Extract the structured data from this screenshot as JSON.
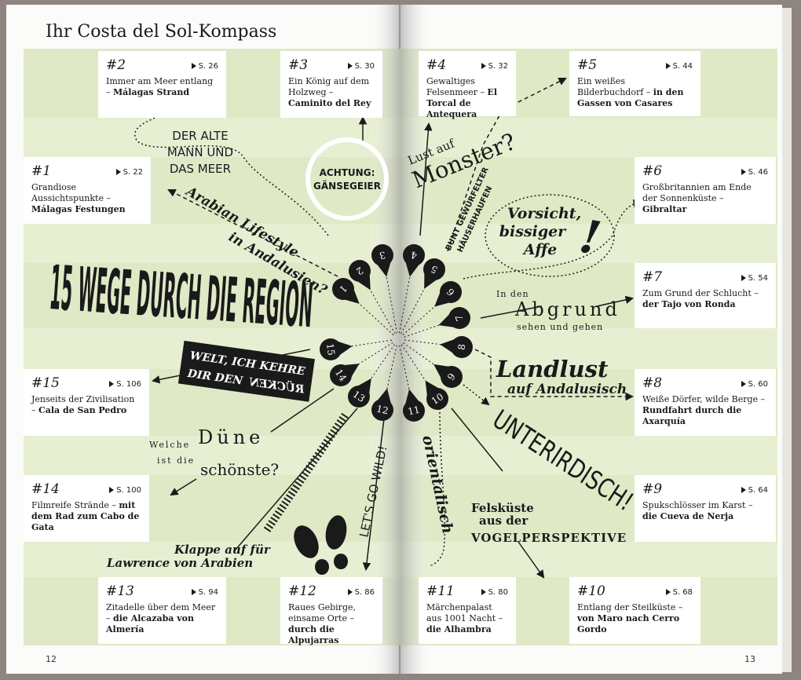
{
  "title": "Ihr Costa del Sol-Kompass",
  "headline": "15 WEGE DURCH DIE REGION",
  "boxes": [
    {
      "number": "#1",
      "page": "S. 22",
      "text": "Grandiose Aussichtspunkte –",
      "bold": "Málagas Festungen"
    },
    {
      "number": "#2",
      "page": "S. 26",
      "text": "Immer am Meer entlang –",
      "bold": "Málagas Strand"
    },
    {
      "number": "#3",
      "page": "S. 30",
      "text": "Ein König auf dem Holzweg –",
      "bold": "Caminito del Rey"
    },
    {
      "number": "#4",
      "page": "S. 32",
      "text": "Gewaltiges Felsenmeer –",
      "bold": "El Torcal de Antequera"
    },
    {
      "number": "#5",
      "page": "S. 44",
      "text": "Ein weißes Bilderbuchdorf –",
      "bold": "in den Gassen von Casares"
    },
    {
      "number": "#6",
      "page": "S. 46",
      "text": "Großbritannien am Ende der Sonnenküste –",
      "bold": "Gibraltar"
    },
    {
      "number": "#7",
      "page": "S. 54",
      "text": "Zum Grund der Schlucht –",
      "bold": "der Tajo von Ronda"
    },
    {
      "number": "#8",
      "page": "S. 60",
      "text": "Weiße Dörfer, wilde Berge –",
      "bold": "Rundfahrt durch die Axarquía"
    },
    {
      "number": "#9",
      "page": "S. 64",
      "text": "Spukschlösser im Karst –",
      "bold": "die Cueva de Nerja"
    },
    {
      "number": "#10",
      "page": "S. 68",
      "text": "Entlang der Steilküste –",
      "bold": "von Maro nach Cerro Gordo"
    },
    {
      "number": "#11",
      "page": "S. 80",
      "text": "Märchenpalast aus 1001 Nacht –",
      "bold": "die Alhambra"
    },
    {
      "number": "#12",
      "page": "S. 86",
      "text": "Raues Gebirge, einsame Orte –",
      "bold": "durch die Alpujarras"
    },
    {
      "number": "#13",
      "page": "S. 94",
      "text": "Zitadelle über dem Meer –",
      "bold": "die Alcazaba von Almería"
    },
    {
      "number": "#14",
      "page": "S. 100",
      "text": "Filmreife Strände –",
      "bold": "mit dem Rad zum Cabo de Gata"
    },
    {
      "number": "#15",
      "page": "S. 106",
      "text": "Jenseits der Zivilisation –",
      "bold": "Cala de San Pedro"
    }
  ],
  "pins": [
    "1",
    "2",
    "3",
    "4",
    "5",
    "6",
    "7",
    "8",
    "9",
    "10",
    "11",
    "12",
    "13",
    "14",
    "15"
  ],
  "annotations": {
    "old_man": [
      "DER ALTE",
      "MANN UND",
      "DAS MEER"
    ],
    "vultures": [
      "ACHTUNG:",
      "GÄNSEGEIER"
    ],
    "arabian": [
      "Arabian Lifestyle",
      "in Andalusien?"
    ],
    "monster": [
      "Lust auf",
      "Monster?"
    ],
    "houses": [
      "BUNT GEWÜRFELTER",
      "HÄUSERHAUFEN"
    ],
    "monkey": [
      "Vorsicht,",
      "bissiger",
      "Affe",
      "!"
    ],
    "abyss": [
      "In den",
      "Abgrund",
      "sehen und gehen"
    ],
    "landlust": [
      "Landlust",
      "auf Andalusisch"
    ],
    "underground": "UNTERIRDISCH!",
    "world": [
      "WELT, ICH KEHRE",
      "DIR DEN",
      "RÜCKEN"
    ],
    "dune": [
      "Welche",
      "Düne",
      "ist die",
      "schönste?"
    ],
    "wild": "LET'S GO WILD!",
    "oriental": "orientalisch",
    "coast": [
      "Felsküste",
      "aus der",
      "VOGELPERSPEKTIVE"
    ],
    "lawrence": [
      "Klappe auf für",
      "Lawrence von Arabien"
    ]
  },
  "page_numbers": [
    "12",
    "13"
  ]
}
